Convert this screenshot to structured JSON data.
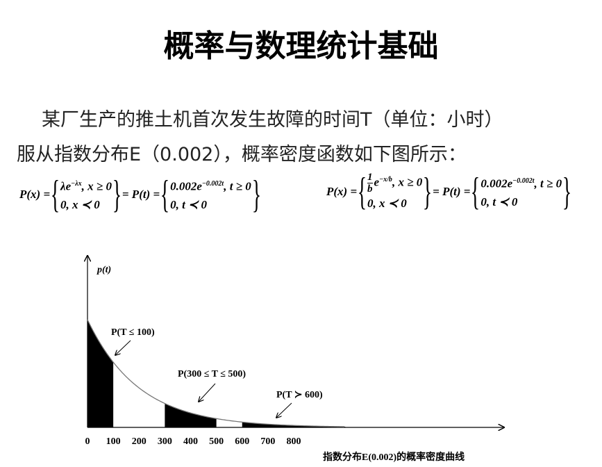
{
  "title": "概率与数理统计基础",
  "paragraph": [
    "某厂生产的推土机首次发生故障的时间T（单位：小时）",
    "服从指数分布E（0.002），概率密度函数如下图所示："
  ],
  "formulas": [
    {
      "lhs": "P(x) =",
      "mid": "= P(t) =",
      "cases1": [
        {
          "base": "λe",
          "sup": "−λx",
          "tail": ", x ≥ 0"
        },
        {
          "base": "0, x ≺ 0"
        }
      ],
      "cases2": [
        {
          "base": "0.002e",
          "sup": "−0.002t",
          "tail": ", t ≥ 0"
        },
        {
          "base": "0, t ≺ 0"
        }
      ]
    },
    {
      "lhs": "P(x) =",
      "mid": "= P(t) =",
      "cases1": [
        {
          "num": "1",
          "den": "b",
          "base": "e",
          "sup": "−x/b",
          "tail": ", x ≥ 0"
        },
        {
          "base": "0, x ≺ 0"
        }
      ],
      "cases2": [
        {
          "base": "0.002e",
          "sup": "−0.002t",
          "tail": ", t ≥ 0"
        },
        {
          "base": "0, t ≺ 0"
        }
      ]
    }
  ],
  "chart_data": {
    "type": "area",
    "ylabel": "p(t)",
    "xticks": [
      0,
      100,
      200,
      300,
      400,
      500,
      600,
      700,
      800
    ],
    "xlim": [
      0,
      1600
    ],
    "regions": [
      [
        0,
        100
      ],
      [
        300,
        500
      ],
      [
        600,
        1000
      ]
    ],
    "annotations": [
      "P(T ≤ 100)",
      "P(300 ≤ T ≤ 500)",
      "P(T ≻ 600)"
    ],
    "caption": "指数分布E(0.002)的概率密度曲线"
  }
}
